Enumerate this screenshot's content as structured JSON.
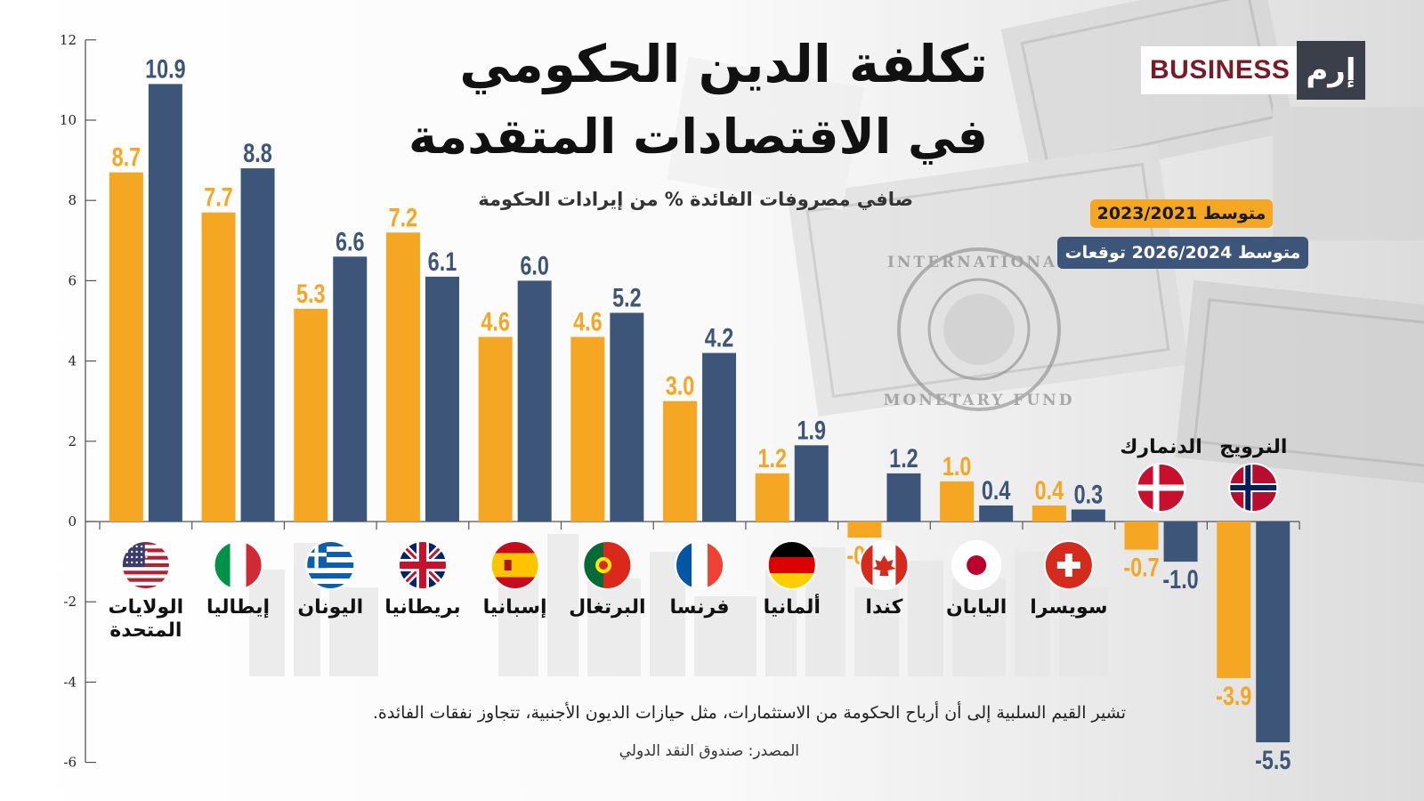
{
  "header": {
    "title_line1": "تكلفة الدين الحكومي",
    "title_line2": "في الاقتصادات المتقدمة",
    "subtitle": "صافي مصروفات الفائدة % من إيرادات الحكومة"
  },
  "brand": {
    "word": "BUSINESS",
    "mark": "إرم"
  },
  "legend": {
    "series1": "متوسط 2023/2021",
    "series2": "متوسط 2026/2024  توقعات"
  },
  "footer": {
    "note": "تشير القيم السلبية إلى أن أرباح الحكومة من الاستثمارات، مثل حيازات الديون الأجنبية، تتجاوز نفقات الفائدة.",
    "source": "المصدر: صندوق النقد الدولي"
  },
  "background": {
    "seal_text_top": "INTERNATIONAL",
    "seal_text_bottom": "MONETARY FUND"
  },
  "colors": {
    "series1": "#f5a623",
    "series2": "#3d5578",
    "text": "#111111"
  },
  "chart_data": {
    "type": "bar",
    "categories": [
      "الولايات المتحدة",
      "إيطاليا",
      "اليونان",
      "بريطانيا",
      "إسبانيا",
      "البرتغال",
      "فرنسا",
      "ألمانيا",
      "كندا",
      "اليابان",
      "سويسرا",
      "الدنمارك",
      "النرويج"
    ],
    "flags": [
      "us-flag-icon",
      "italy-flag-icon",
      "greece-flag-icon",
      "uk-flag-icon",
      "spain-flag-icon",
      "portugal-flag-icon",
      "france-flag-icon",
      "germany-flag-icon",
      "canada-flag-icon",
      "japan-flag-icon",
      "switzerland-flag-icon",
      "denmark-flag-icon",
      "norway-flag-icon"
    ],
    "series": [
      {
        "name": "متوسط 2023/2021",
        "values": [
          8.7,
          7.7,
          5.3,
          7.2,
          4.6,
          4.6,
          3.0,
          1.2,
          -0.4,
          1.0,
          0.4,
          -0.7,
          -3.9
        ]
      },
      {
        "name": "متوسط 2026/2024  توقعات",
        "values": [
          10.9,
          8.8,
          6.6,
          6.1,
          6.0,
          5.2,
          4.2,
          1.9,
          1.2,
          0.4,
          0.3,
          -1.0,
          -5.5
        ]
      }
    ],
    "yticks": [
      "12",
      "10",
      "8",
      "6",
      "4",
      "2",
      "0",
      "-2",
      "-4",
      "-6"
    ],
    "ylim": [
      -6,
      12
    ],
    "grid": false,
    "legend_position": "top-right"
  }
}
